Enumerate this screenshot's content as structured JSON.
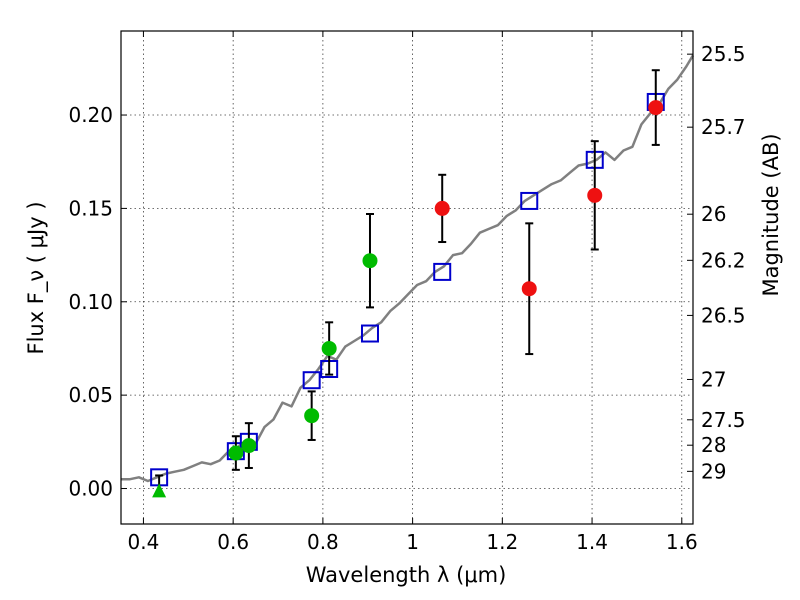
{
  "chart_data": {
    "type": "scatter",
    "xlabel": "Wavelength  λ (μm)",
    "ylabel": "Flux  F_ν  ( μJy )",
    "ylabel_right": "Magnitude (AB)",
    "xlim": [
      0.35,
      1.625
    ],
    "ylim": [
      -0.019,
      0.245
    ],
    "xticks": [
      0.4,
      0.6,
      0.8,
      1.0,
      1.2,
      1.4,
      1.6
    ],
    "xtick_labels": [
      "0.4",
      "0.6",
      "0.8",
      "1",
      "1.2",
      "1.4",
      "1.6"
    ],
    "yticks": [
      0.0,
      0.05,
      0.1,
      0.15,
      0.2
    ],
    "ytick_labels": [
      "0.00",
      "0.05",
      "0.10",
      "0.15",
      "0.20"
    ],
    "right_ticks": [
      {
        "label": "25.5",
        "flux": 0.2326
      },
      {
        "label": "25.7",
        "flux": 0.1935
      },
      {
        "label": "26",
        "flux": 0.1469
      },
      {
        "label": "26.2",
        "flux": 0.1222
      },
      {
        "label": "26.5",
        "flux": 0.0927
      },
      {
        "label": "27",
        "flux": 0.0584
      },
      {
        "label": "27.5",
        "flux": 0.0368
      },
      {
        "label": "28",
        "flux": 0.0232
      },
      {
        "label": "29",
        "flux": 0.0092
      }
    ],
    "grid": true,
    "series": [
      {
        "kind": "line",
        "color": "#808080",
        "x": [
          0.35,
          0.37,
          0.39,
          0.41,
          0.43,
          0.45,
          0.47,
          0.49,
          0.51,
          0.53,
          0.55,
          0.57,
          0.59,
          0.61,
          0.63,
          0.65,
          0.67,
          0.69,
          0.71,
          0.73,
          0.75,
          0.77,
          0.79,
          0.81,
          0.83,
          0.85,
          0.87,
          0.89,
          0.91,
          0.93,
          0.95,
          0.97,
          0.99,
          1.01,
          1.03,
          1.05,
          1.07,
          1.09,
          1.11,
          1.13,
          1.15,
          1.17,
          1.19,
          1.21,
          1.23,
          1.25,
          1.27,
          1.29,
          1.31,
          1.33,
          1.35,
          1.37,
          1.39,
          1.41,
          1.43,
          1.45,
          1.47,
          1.49,
          1.51,
          1.53,
          1.55,
          1.57,
          1.59,
          1.61,
          1.625
        ],
        "y": [
          0.005,
          0.005,
          0.006,
          0.004,
          0.006,
          0.008,
          0.009,
          0.01,
          0.012,
          0.014,
          0.013,
          0.015,
          0.02,
          0.022,
          0.026,
          0.024,
          0.033,
          0.037,
          0.046,
          0.044,
          0.054,
          0.058,
          0.064,
          0.071,
          0.069,
          0.076,
          0.079,
          0.082,
          0.086,
          0.089,
          0.095,
          0.099,
          0.104,
          0.109,
          0.111,
          0.116,
          0.119,
          0.125,
          0.126,
          0.131,
          0.137,
          0.139,
          0.141,
          0.146,
          0.149,
          0.154,
          0.157,
          0.16,
          0.163,
          0.165,
          0.169,
          0.173,
          0.174,
          0.176,
          0.18,
          0.176,
          0.181,
          0.183,
          0.195,
          0.201,
          0.206,
          0.214,
          0.219,
          0.226,
          0.232
        ]
      },
      {
        "kind": "markers",
        "marker": "square",
        "color": "#0000cc",
        "x": [
          0.435,
          0.606,
          0.635,
          0.775,
          0.814,
          0.905,
          1.066,
          1.26,
          1.406,
          1.542
        ],
        "y": [
          0.006,
          0.02,
          0.025,
          0.058,
          0.064,
          0.083,
          0.116,
          0.154,
          0.176,
          0.207
        ]
      },
      {
        "kind": "markers",
        "marker": "circle",
        "color": "#00bb00",
        "x": [
          0.606,
          0.635,
          0.775,
          0.814,
          0.905
        ],
        "y": [
          0.019,
          0.023,
          0.039,
          0.075,
          0.122
        ],
        "yerr": [
          0.009,
          0.012,
          0.013,
          0.014,
          0.025
        ]
      },
      {
        "kind": "markers",
        "marker": "circle",
        "color": "#ee1111",
        "x": [
          1.066,
          1.26,
          1.406,
          1.542
        ],
        "y": [
          0.15,
          0.107,
          0.157,
          0.204
        ],
        "yerr": [
          0.018,
          0.035,
          0.029,
          0.02
        ]
      },
      {
        "kind": "markers",
        "marker": "triangle",
        "color": "#00bb00",
        "x": [
          0.435
        ],
        "y": [
          -0.001
        ],
        "yerr_up": [
          0.008
        ]
      }
    ]
  }
}
